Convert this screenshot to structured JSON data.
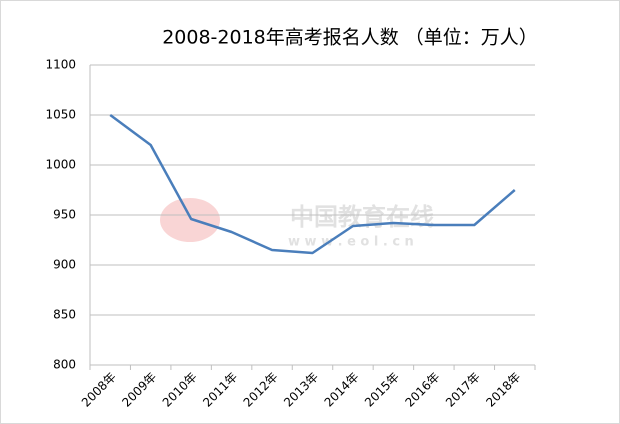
{
  "chart_data": {
    "type": "line",
    "title": "2008-2018年高考报名人数 （单位：万人）",
    "categories": [
      "2008年",
      "2009年",
      "2010年",
      "2011年",
      "2012年",
      "2013年",
      "2014年",
      "2015年",
      "2016年",
      "2017年",
      "2018年"
    ],
    "values": [
      1050,
      1020,
      946,
      933,
      915,
      912,
      939,
      942,
      940,
      940,
      975
    ],
    "color": "#4a7ebb",
    "ylim": [
      800,
      1100
    ],
    "yticks": [
      800,
      850,
      900,
      950,
      1000,
      1050,
      1100
    ],
    "grid": true,
    "watermark": [
      "中国教育在线",
      "w w w . e o l . c n"
    ]
  }
}
